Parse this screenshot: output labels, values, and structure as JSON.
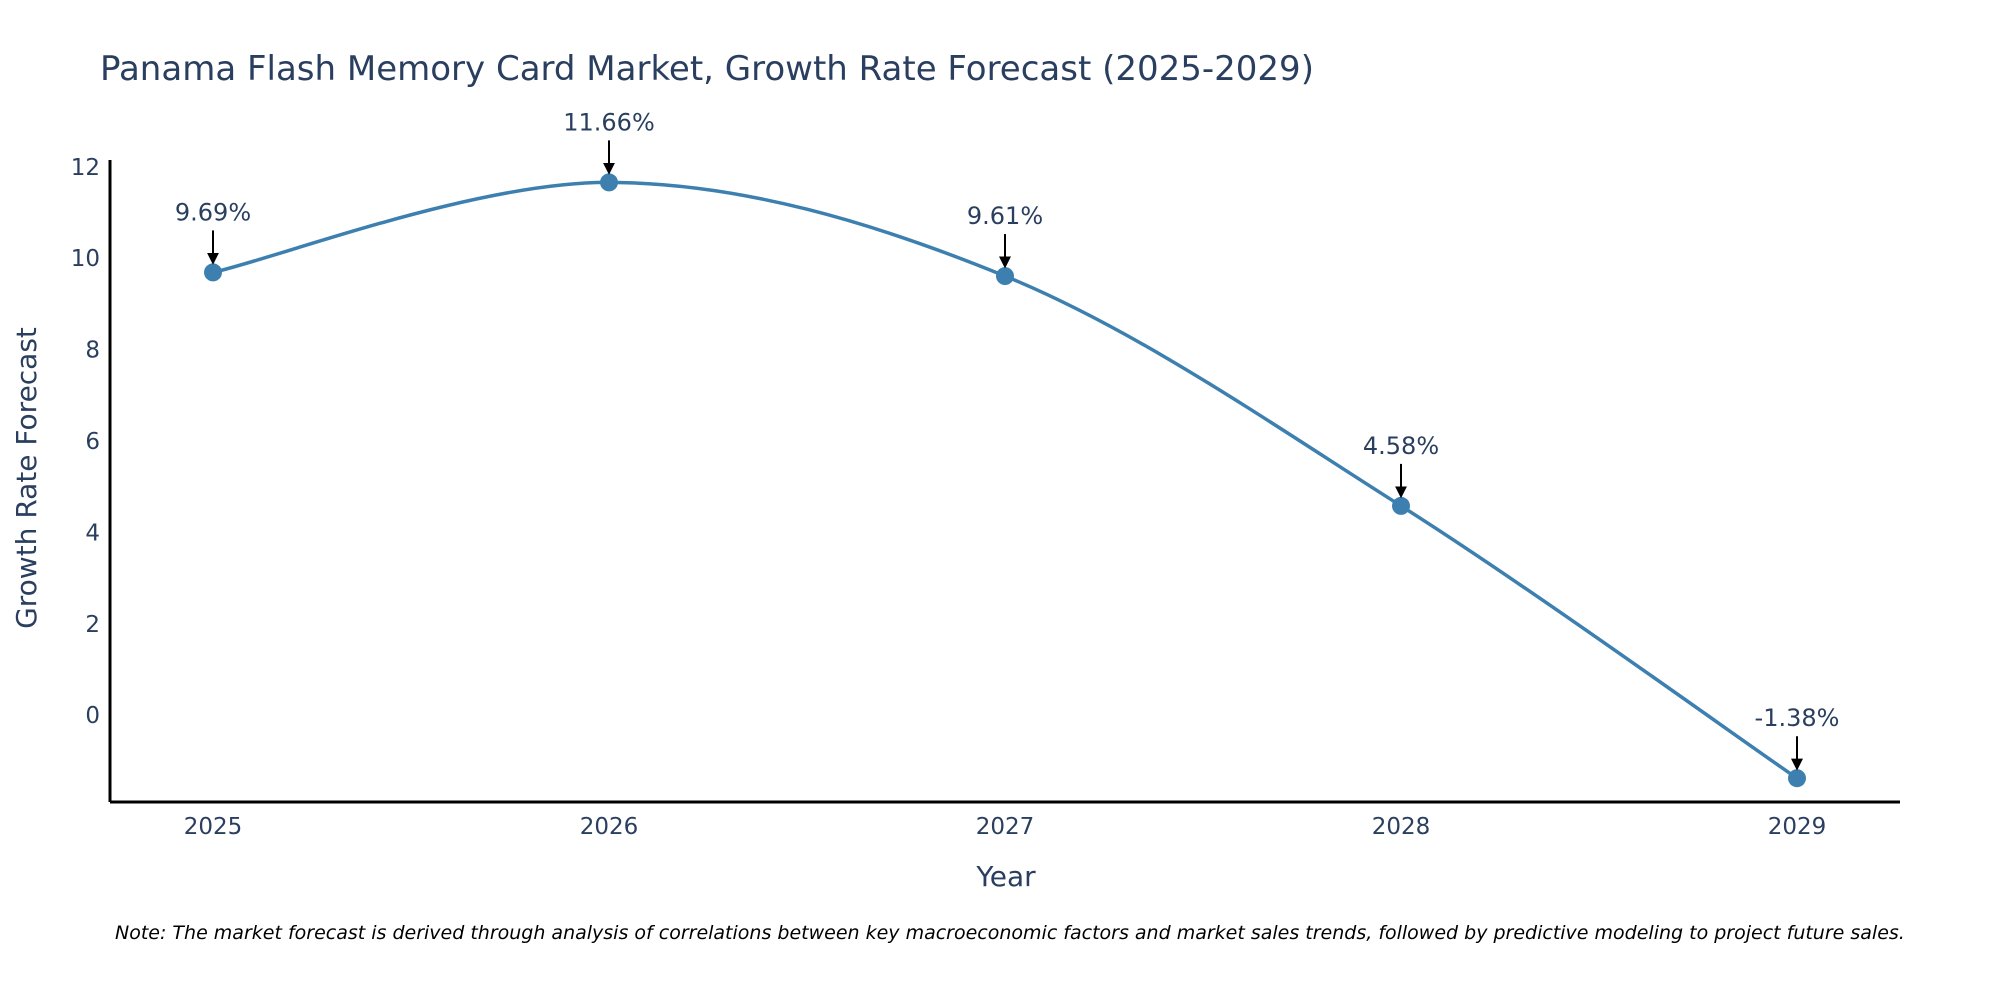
{
  "chart_data": {
    "type": "line",
    "title": "Panama Flash Memory Card Market, Growth Rate Forecast (2025-2029)",
    "xlabel": "Year",
    "ylabel": "Growth Rate Forecast",
    "categories": [
      "2025",
      "2026",
      "2027",
      "2028",
      "2029"
    ],
    "series": [
      {
        "name": "Growth Rate Forecast",
        "values": [
          9.69,
          11.66,
          9.61,
          4.58,
          -1.38
        ]
      }
    ],
    "data_labels": [
      "9.69%",
      "11.66%",
      "9.61%",
      "4.58%",
      "-1.38%"
    ],
    "y_ticks": [
      0,
      2,
      4,
      6,
      8,
      10,
      12
    ],
    "ylim": [
      -1.9,
      12.15
    ],
    "grid": false,
    "line_shape": "spline",
    "colors": {
      "line": "#3d80b0",
      "marker": "#3d80b0",
      "arrow": "#000000",
      "axis": "#000000",
      "text": "#2a3f5f"
    }
  },
  "note": "Note: The market forecast is derived through analysis of correlations between key macroeconomic factors and market sales trends, followed by predictive modeling to project future sales."
}
